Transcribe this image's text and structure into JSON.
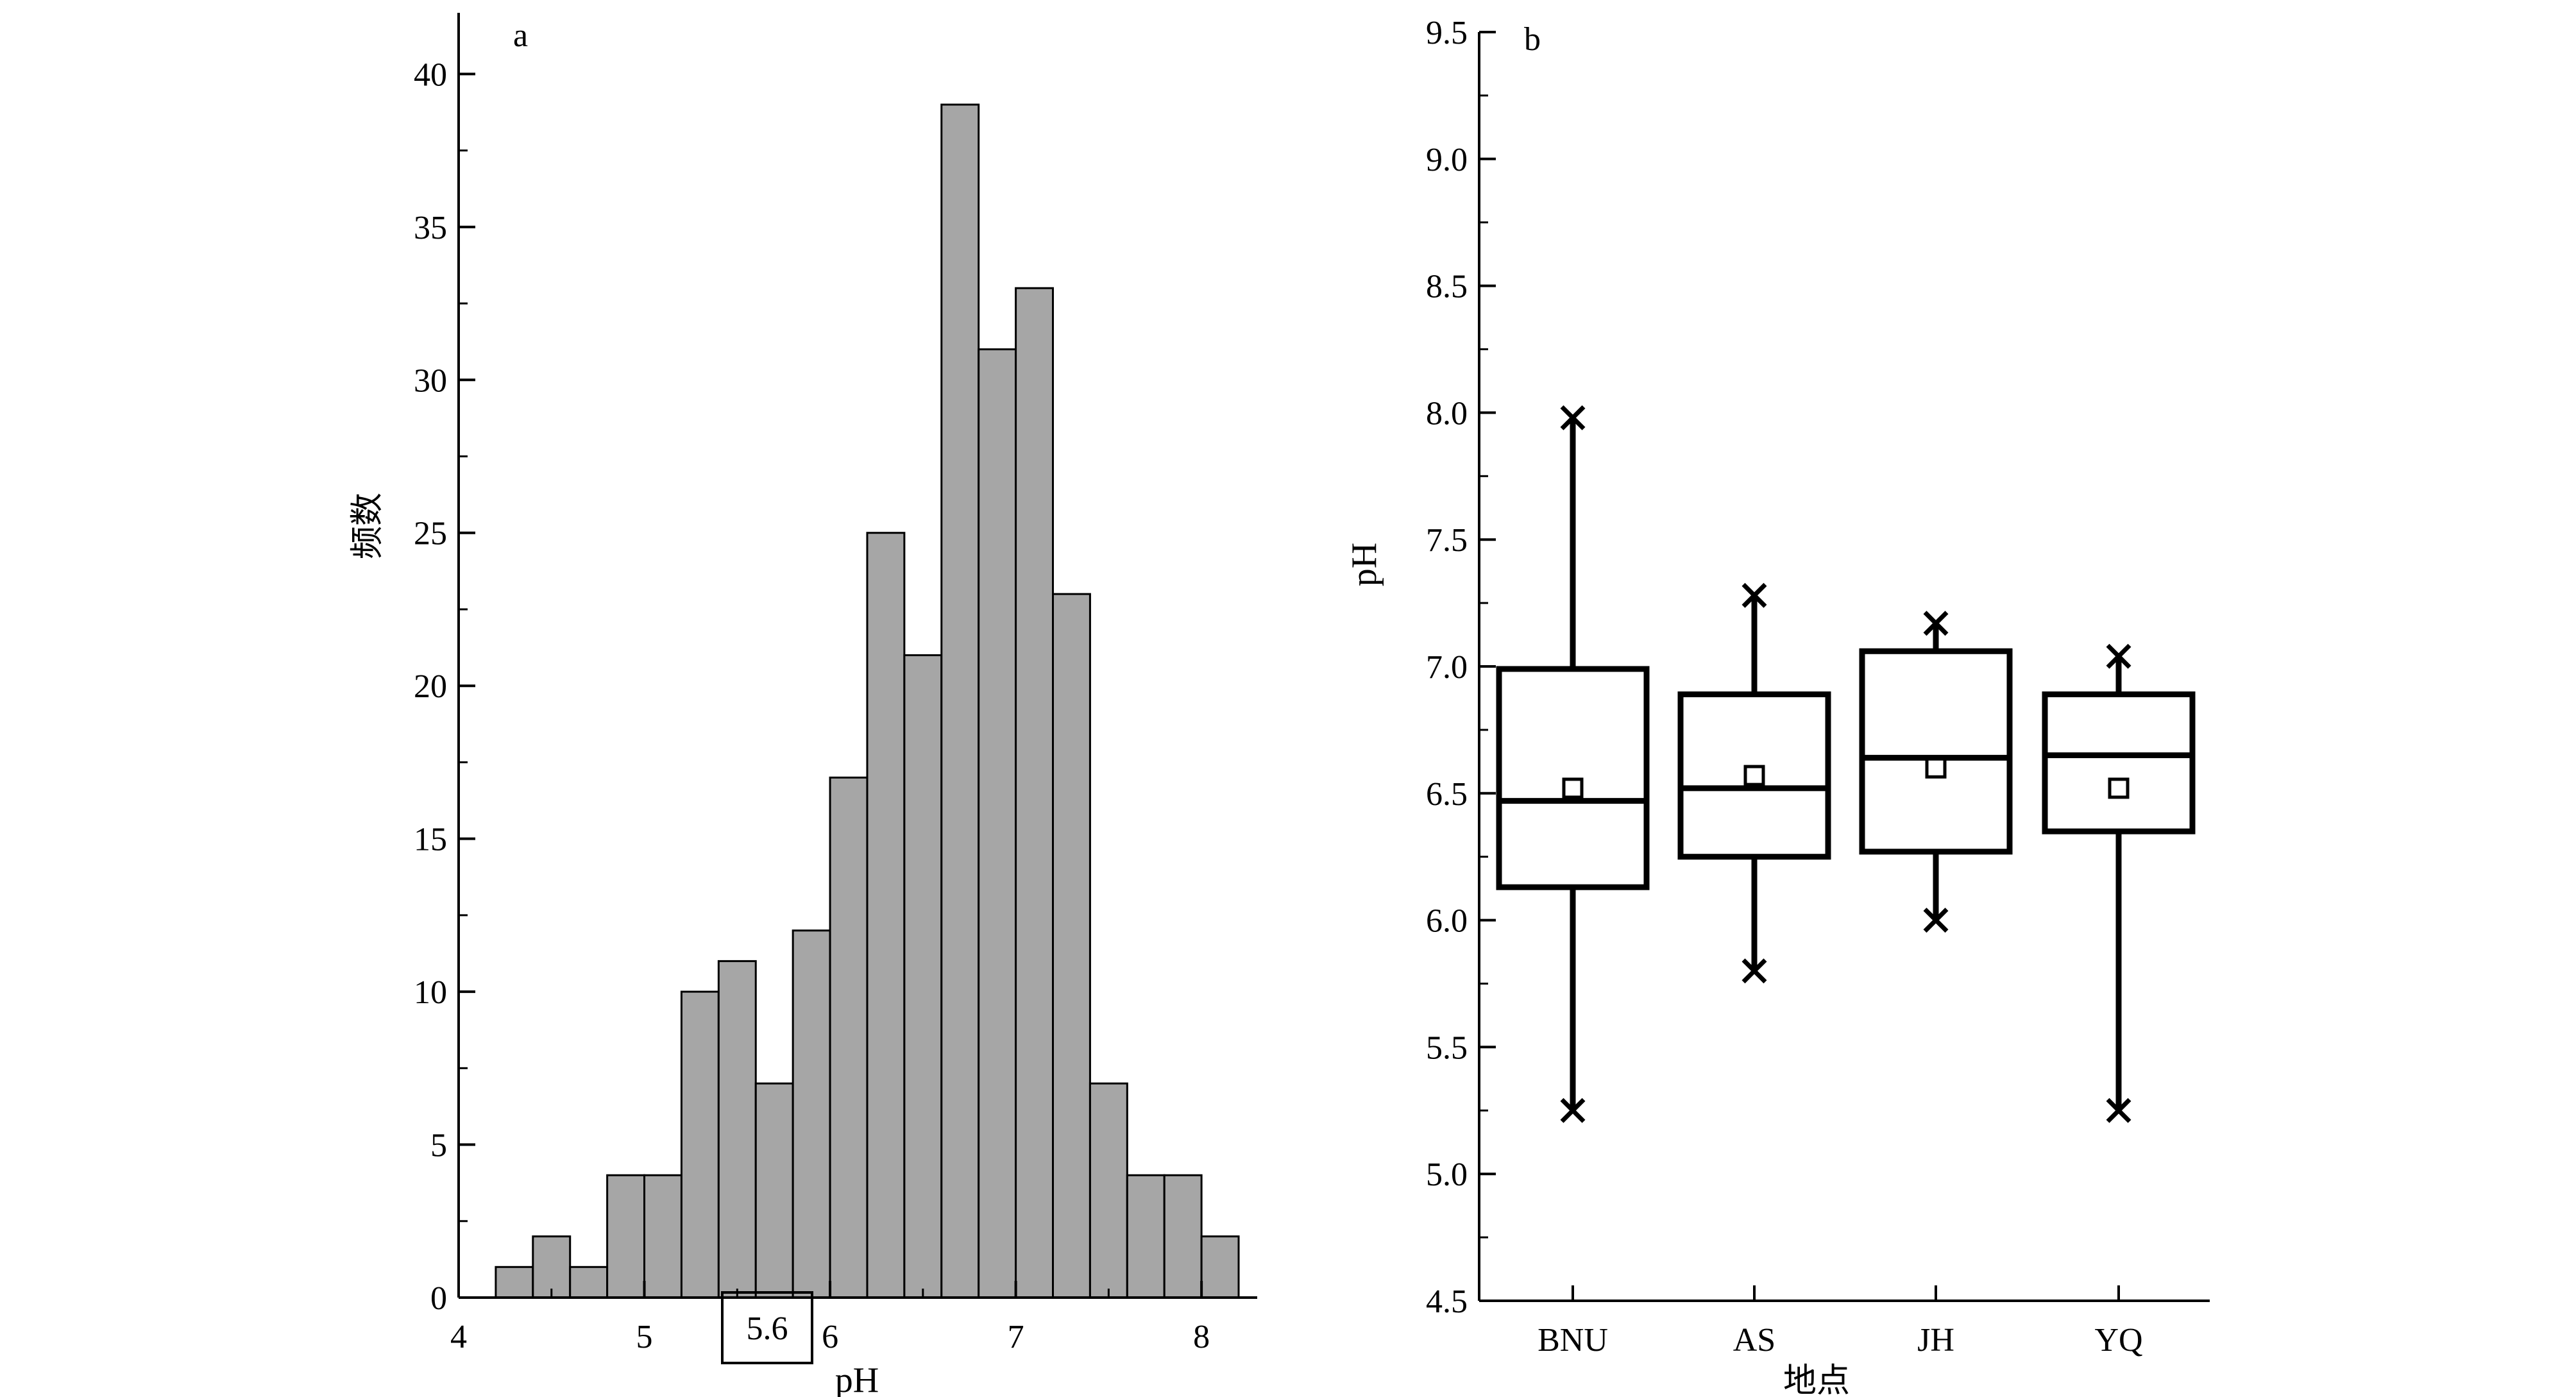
{
  "chart_data": [
    {
      "type": "bar",
      "panel_label": "a",
      "xlabel": "pH",
      "ylabel": "频数",
      "xlim": [
        4,
        8.3
      ],
      "ylim": [
        0,
        42
      ],
      "bin_width": 0.2,
      "bin_starts": [
        4.2,
        4.4,
        4.6,
        4.8,
        5.0,
        5.2,
        5.4,
        5.6,
        5.8,
        6.0,
        6.2,
        6.4,
        6.6,
        6.8,
        7.0,
        7.2,
        7.4,
        7.6,
        7.8,
        8.0
      ],
      "values": [
        1,
        2,
        1,
        4,
        4,
        10,
        11,
        7,
        12,
        17,
        25,
        21,
        39,
        31,
        33,
        23,
        7,
        4,
        4,
        2
      ],
      "bar_color": "#a6a6a6",
      "x_ticks": [
        "4",
        "5",
        "6",
        "7",
        "8"
      ],
      "y_ticks": [
        "0",
        "5",
        "10",
        "15",
        "20",
        "25",
        "30",
        "35",
        "40"
      ],
      "annotation": "5.6"
    },
    {
      "type": "box",
      "panel_label": "b",
      "xlabel": "地点",
      "ylabel": "pH",
      "ylim": [
        4.5,
        9.5
      ],
      "categories": [
        "BNU",
        "AS",
        "JH",
        "YQ"
      ],
      "min": [
        5.25,
        5.8,
        6.0,
        5.25
      ],
      "q1": [
        6.13,
        6.25,
        6.27,
        6.35
      ],
      "median": [
        6.47,
        6.52,
        6.64,
        6.65
      ],
      "q3": [
        6.99,
        6.89,
        7.06,
        6.89
      ],
      "max": [
        7.98,
        7.28,
        7.17,
        7.04
      ],
      "mean": [
        6.52,
        6.57,
        6.6,
        6.52
      ],
      "y_ticks": [
        "4.5",
        "5.0",
        "5.5",
        "6.0",
        "6.5",
        "7.0",
        "7.5",
        "8.0",
        "8.5",
        "9.0",
        "9.5"
      ]
    }
  ]
}
